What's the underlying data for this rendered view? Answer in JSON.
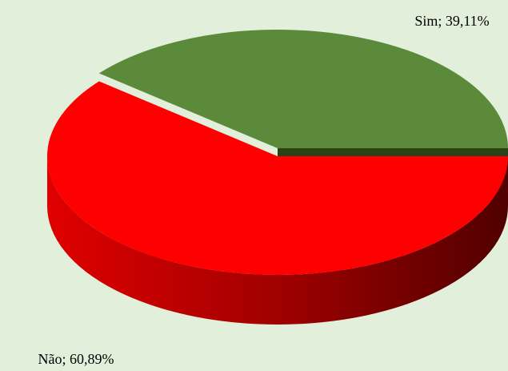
{
  "chart_data": {
    "type": "pie3d",
    "values": [
      39.11,
      60.89
    ],
    "value_labels": [
      "Sim; 39,11%",
      "Não; 60,89%"
    ],
    "colors": [
      "#5b8a3a",
      "#ff0000"
    ]
  }
}
